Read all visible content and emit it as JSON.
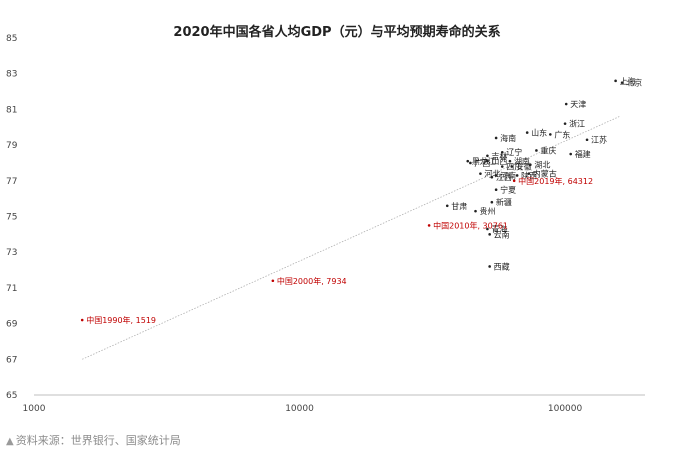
{
  "chart_data": {
    "type": "scatter",
    "title": "2020年中国各省人均GDP（元）与平均预期寿命的关系",
    "xlabel": "",
    "ylabel": "",
    "x_scale": "log",
    "xlim": [
      1000,
      200000
    ],
    "ylim": [
      65,
      85
    ],
    "x_ticks": [
      1000,
      10000,
      100000
    ],
    "x_tick_labels": [
      "1000",
      "10000",
      "100000"
    ],
    "y_ticks": [
      65,
      67,
      69,
      71,
      73,
      75,
      77,
      79,
      81,
      83,
      85
    ],
    "y_tick_labels": [
      "65",
      "67",
      "69",
      "71",
      "73",
      "75",
      "77",
      "79",
      "81",
      "83",
      "85"
    ],
    "grid": false,
    "trendline": {
      "x": [
        1519,
        160000
      ],
      "y": [
        67.0,
        80.6
      ]
    },
    "points": [
      {
        "label": "北京",
        "x": 164000,
        "y": 82.5,
        "color": "#222222"
      },
      {
        "label": "上海",
        "x": 155000,
        "y": 82.6,
        "color": "#222222"
      },
      {
        "label": "天津",
        "x": 101000,
        "y": 81.3,
        "color": "#222222"
      },
      {
        "label": "浙江",
        "x": 100000,
        "y": 80.2,
        "color": "#222222"
      },
      {
        "label": "江苏",
        "x": 121000,
        "y": 79.3,
        "color": "#222222"
      },
      {
        "label": "福建",
        "x": 105000,
        "y": 78.5,
        "color": "#222222"
      },
      {
        "label": "广东",
        "x": 88000,
        "y": 79.6,
        "color": "#222222"
      },
      {
        "label": "山东",
        "x": 72000,
        "y": 79.7,
        "color": "#222222"
      },
      {
        "label": "海南",
        "x": 55000,
        "y": 79.4,
        "color": "#222222"
      },
      {
        "label": "重庆",
        "x": 78000,
        "y": 78.7,
        "color": "#222222"
      },
      {
        "label": "辽宁",
        "x": 58000,
        "y": 78.6,
        "color": "#222222"
      },
      {
        "label": "吉林",
        "x": 51000,
        "y": 78.4,
        "color": "#222222"
      },
      {
        "label": "黑龙江",
        "x": 43000,
        "y": 78.1,
        "color": "#222222"
      },
      {
        "label": "广西",
        "x": 44000,
        "y": 78.0,
        "color": "#222222"
      },
      {
        "label": "山西",
        "x": 51000,
        "y": 78.1,
        "color": "#222222"
      },
      {
        "label": "湖南",
        "x": 62000,
        "y": 78.1,
        "color": "#222222"
      },
      {
        "label": "安徽",
        "x": 63000,
        "y": 77.8,
        "color": "#222222"
      },
      {
        "label": "湖北",
        "x": 74000,
        "y": 77.9,
        "color": "#222222"
      },
      {
        "label": "四川",
        "x": 58000,
        "y": 77.8,
        "color": "#222222"
      },
      {
        "label": "河北",
        "x": 48000,
        "y": 77.4,
        "color": "#222222"
      },
      {
        "label": "江西",
        "x": 53000,
        "y": 77.2,
        "color": "#222222"
      },
      {
        "label": "陕西",
        "x": 66000,
        "y": 77.3,
        "color": "#222222"
      },
      {
        "label": "内蒙古",
        "x": 73000,
        "y": 77.4,
        "color": "#222222"
      },
      {
        "label": "河南",
        "x": 55000,
        "y": 77.3,
        "color": "#222222"
      },
      {
        "label": "宁夏",
        "x": 55000,
        "y": 76.5,
        "color": "#222222"
      },
      {
        "label": "新疆",
        "x": 53000,
        "y": 75.8,
        "color": "#222222"
      },
      {
        "label": "甘肃",
        "x": 36000,
        "y": 75.6,
        "color": "#222222"
      },
      {
        "label": "贵州",
        "x": 46000,
        "y": 75.3,
        "color": "#222222"
      },
      {
        "label": "青海",
        "x": 51000,
        "y": 74.3,
        "color": "#222222"
      },
      {
        "label": "云南",
        "x": 52000,
        "y": 74.0,
        "color": "#222222"
      },
      {
        "label": "西藏",
        "x": 52000,
        "y": 72.2,
        "color": "#222222"
      },
      {
        "label": "中国2019年, 64312",
        "x": 64312,
        "y": 77.0,
        "color": "#c00000"
      },
      {
        "label": "中国2010年, 30761",
        "x": 30761,
        "y": 74.5,
        "color": "#c00000"
      },
      {
        "label": "中国2000年, 7934",
        "x": 7934,
        "y": 71.4,
        "color": "#c00000"
      },
      {
        "label": "中国1990年, 1519",
        "x": 1519,
        "y": 69.2,
        "color": "#c00000"
      }
    ]
  },
  "source_note": "资料来源：世界银行、国家统计局",
  "source_icon": "triangle-up-icon"
}
